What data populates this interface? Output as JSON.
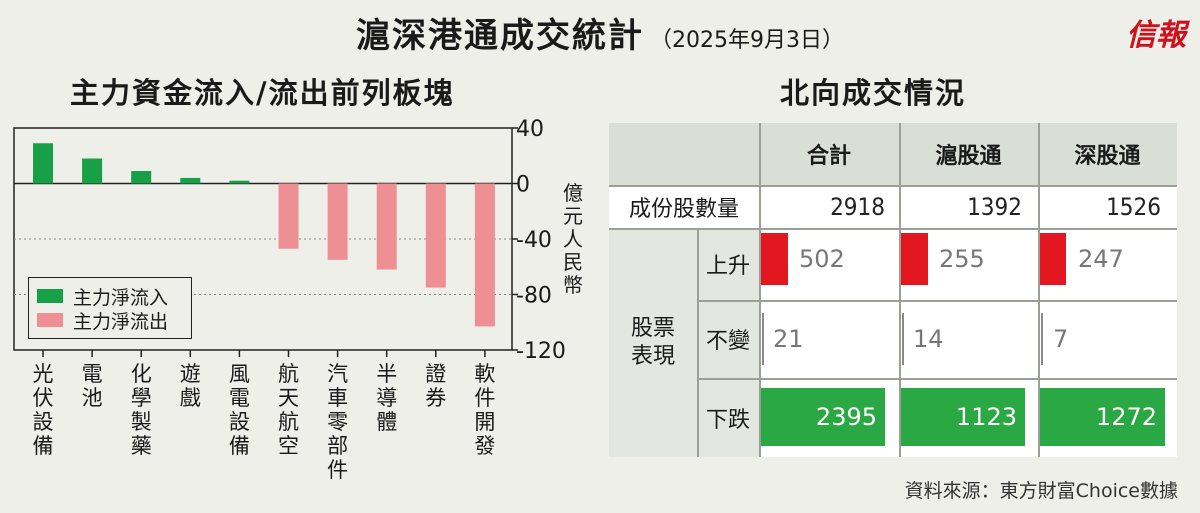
{
  "header": {
    "title": "滬深港通成交統計",
    "date": "（2025年9月3日）",
    "brand": "信報"
  },
  "chart_data": {
    "type": "bar",
    "title": "主力資金流入/流出前列板塊",
    "categories": [
      "光伏設備",
      "電池",
      "化學製藥",
      "遊戲",
      "風電設備",
      "航天航空",
      "汽車零部件",
      "半導體",
      "證券",
      "軟件開發"
    ],
    "series": [
      {
        "name": "主力淨流入",
        "values": [
          29,
          18,
          9,
          4,
          2,
          null,
          null,
          null,
          null,
          null
        ]
      },
      {
        "name": "主力淨流出",
        "values": [
          null,
          null,
          null,
          null,
          null,
          -47,
          -55,
          -62,
          -75,
          -103
        ]
      }
    ],
    "ylabel": "億元人民幣",
    "ylim": [
      -120,
      40
    ],
    "yticks": [
      "40",
      "0",
      "-40",
      "-80",
      "-120"
    ],
    "grid": true,
    "legend_position": "bottom-left",
    "colors": {
      "inflow": "#17a046",
      "outflow": "#ee8f94"
    }
  },
  "table": {
    "title": "北向成交情況",
    "columns": [
      "合計",
      "滬股通",
      "深股通"
    ],
    "shares_row": {
      "label": "成份股數量",
      "values": [
        "2918",
        "1392",
        "1526"
      ]
    },
    "group_label": "股票表現",
    "rows": [
      {
        "label": "上升",
        "values": [
          "502",
          "255",
          "247"
        ],
        "fractions": [
          0.2,
          0.2,
          0.19
        ]
      },
      {
        "label": "不變",
        "values": [
          "21",
          "14",
          "7"
        ],
        "fractions": [
          0.01,
          0.01,
          0.01
        ]
      },
      {
        "label": "下跌",
        "values": [
          "2395",
          "1123",
          "1272"
        ],
        "fractions": [
          1.0,
          1.0,
          1.0
        ]
      }
    ],
    "colors": {
      "up": "#e3171f",
      "down": "#2aa843"
    }
  },
  "footer": {
    "source": "資料來源：東方財富Choice數據"
  }
}
